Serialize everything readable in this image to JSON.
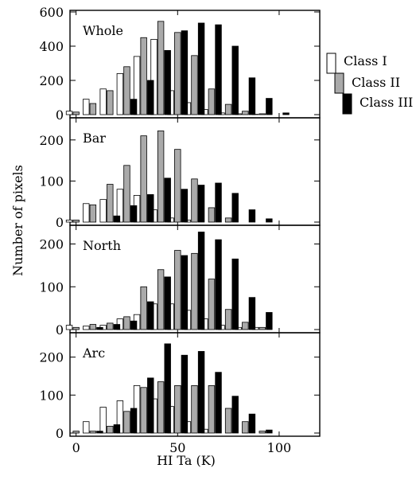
{
  "chart_data": {
    "type": "bar",
    "xlabel": "HI Ta (K)",
    "ylabel": "Number of pixels",
    "xlim": [
      -3,
      120
    ],
    "xticks": [
      0,
      50,
      100
    ],
    "bin_centers": [
      0,
      8.3,
      16.7,
      25,
      33.3,
      41.7,
      50,
      58.3,
      66.7,
      75,
      83.3,
      91.7,
      100
    ],
    "legend": {
      "position": "right",
      "entries": [
        "Class I",
        "Class II",
        "Class III"
      ]
    },
    "series_styles": {
      "Class I": "#ffffff",
      "Class II": "#aaaaaa",
      "Class III": "#000000"
    },
    "panels": [
      {
        "label": "Whole",
        "ylim": [
          0,
          600
        ],
        "yticks": [
          0,
          200,
          400,
          600
        ],
        "series": [
          {
            "name": "Class I",
            "values": [
              20,
              90,
              150,
              240,
              340,
              440,
              140,
              70,
              30,
              10,
              5,
              2,
              0
            ]
          },
          {
            "name": "Class II",
            "values": [
              15,
              65,
              140,
              280,
              450,
              545,
              480,
              345,
              150,
              60,
              20,
              5,
              0
            ]
          },
          {
            "name": "Class III",
            "values": [
              0,
              0,
              0,
              90,
              200,
              375,
              490,
              535,
              525,
              400,
              215,
              95,
              10
            ]
          }
        ]
      },
      {
        "label": "Bar",
        "ylim": [
          0,
          250
        ],
        "yticks": [
          0,
          100,
          200
        ],
        "series": [
          {
            "name": "Class I",
            "values": [
              5,
              45,
              55,
              80,
              65,
              30,
              10,
              5,
              0,
              0,
              0,
              0,
              0
            ]
          },
          {
            "name": "Class II",
            "values": [
              5,
              42,
              92,
              138,
              210,
              222,
              177,
              105,
              35,
              10,
              0,
              0,
              0
            ]
          },
          {
            "name": "Class III",
            "values": [
              0,
              0,
              15,
              40,
              67,
              107,
              80,
              90,
              95,
              70,
              30,
              8,
              0
            ]
          }
        ]
      },
      {
        "label": "North",
        "ylim": [
          0,
          240
        ],
        "yticks": [
          0,
          100,
          200
        ],
        "series": [
          {
            "name": "Class I",
            "values": [
              10,
              8,
              10,
              25,
              35,
              60,
              60,
              45,
              25,
              10,
              5,
              5,
              0
            ]
          },
          {
            "name": "Class II",
            "values": [
              5,
              12,
              15,
              30,
              100,
              140,
              185,
              178,
              118,
              47,
              17,
              5,
              0
            ]
          },
          {
            "name": "Class III",
            "values": [
              0,
              5,
              12,
              20,
              65,
              123,
              173,
              228,
              210,
              165,
              75,
              40,
              0
            ]
          }
        ]
      },
      {
        "label": "Arc",
        "ylim": [
          0,
          260
        ],
        "yticks": [
          0,
          100,
          200
        ],
        "series": [
          {
            "name": "Class I",
            "values": [
              0,
              30,
              68,
              85,
              125,
              90,
              70,
              30,
              10,
              0,
              0,
              0,
              0
            ]
          },
          {
            "name": "Class II",
            "values": [
              5,
              5,
              18,
              57,
              120,
              135,
              125,
              125,
              125,
              65,
              30,
              5,
              0
            ]
          },
          {
            "name": "Class III",
            "values": [
              0,
              5,
              22,
              65,
              145,
              235,
              205,
              215,
              160,
              97,
              50,
              8,
              0
            ]
          }
        ]
      }
    ]
  }
}
